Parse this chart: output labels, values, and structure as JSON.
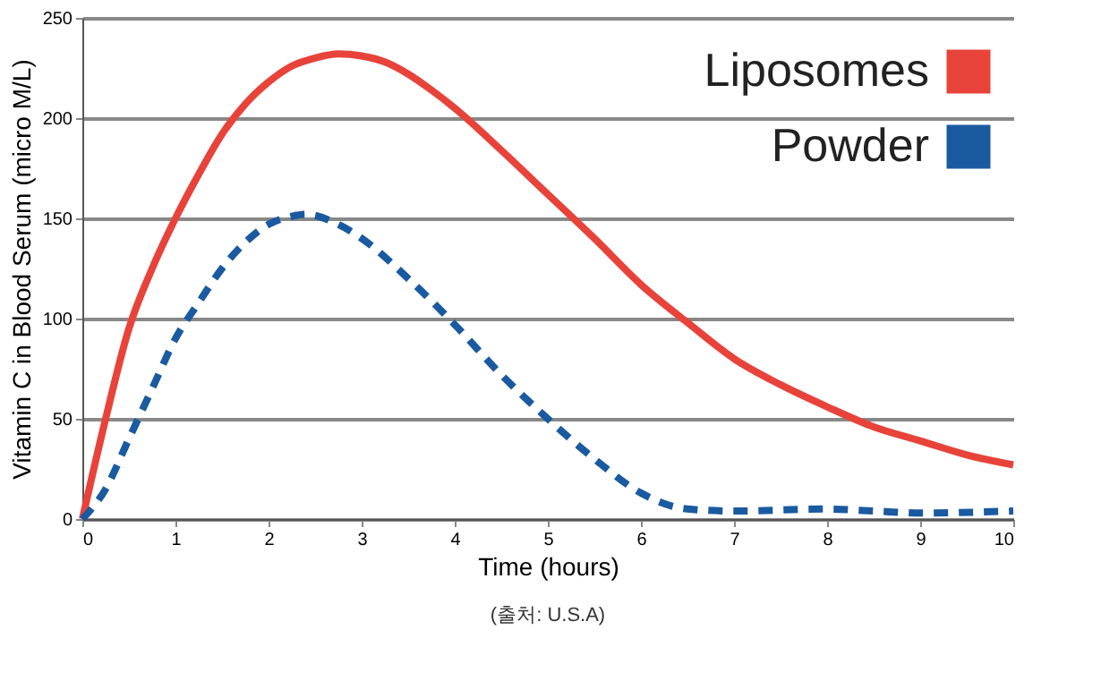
{
  "chart_data": {
    "type": "line",
    "xlabel": "Time (hours)",
    "ylabel": "Vitamin C in Blood Serum (micro M/L)",
    "xlim": [
      0,
      10
    ],
    "xticks": [
      0,
      1,
      2,
      3,
      4,
      5,
      6,
      7,
      8,
      9,
      10
    ],
    "ylim": [
      0,
      250
    ],
    "yticks": [
      0,
      50,
      100,
      150,
      200,
      250
    ],
    "grid": "y",
    "legend": "top right",
    "annotations": [
      "(출처: U.S.A)"
    ],
    "series": [
      {
        "name": "Liposomes",
        "color": "#e8433a",
        "line_style": "solid",
        "x": [
          0,
          0.25,
          0.5,
          0.75,
          1,
          1.25,
          1.5,
          1.75,
          2,
          2.25,
          2.5,
          2.75,
          3,
          3.25,
          3.5,
          3.75,
          4,
          4.5,
          5,
          5.5,
          6,
          6.5,
          7,
          7.5,
          8,
          8.5,
          9,
          9.5,
          10
        ],
        "values": [
          0,
          50,
          95,
          125,
          150,
          172,
          192,
          207,
          218,
          226,
          230,
          232,
          231,
          228,
          222,
          214,
          205,
          184,
          162,
          140,
          117,
          98,
          80,
          67,
          56,
          46,
          39,
          32,
          27
        ]
      },
      {
        "name": "Powder",
        "color": "#1a5aa0",
        "line_style": "dashed",
        "x": [
          0,
          0.25,
          0.5,
          0.75,
          1,
          1.25,
          1.5,
          1.75,
          2,
          2.25,
          2.4,
          2.75,
          3,
          3.5,
          4,
          4.5,
          5,
          5.5,
          6,
          6.5,
          7,
          8,
          8.5,
          9,
          10
        ],
        "values": [
          0,
          15,
          40,
          65,
          90,
          108,
          125,
          138,
          147,
          151,
          152,
          147,
          140,
          120,
          97,
          72,
          50,
          30,
          13,
          5,
          4,
          5,
          4,
          3,
          4
        ]
      }
    ]
  }
}
